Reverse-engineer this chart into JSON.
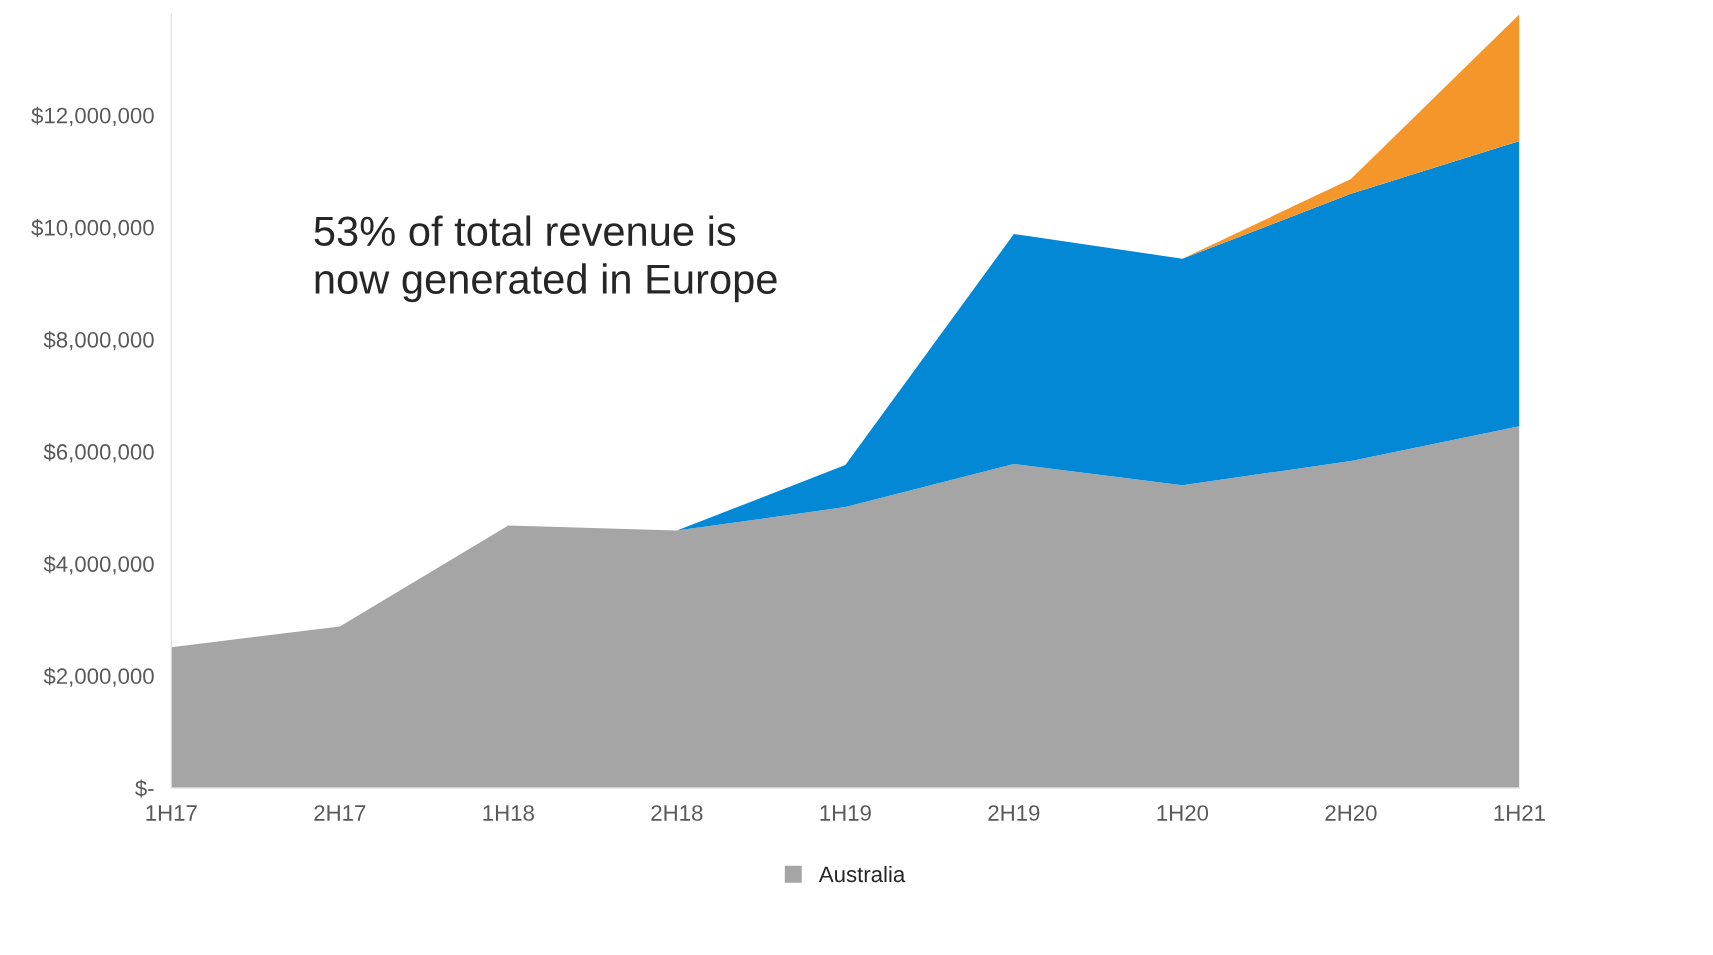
{
  "chart_data": {
    "type": "area",
    "stacked": true,
    "categories": [
      "1H17",
      "2H17",
      "1H18",
      "2H18",
      "1H19",
      "2H19",
      "1H20",
      "2H20",
      "1H21"
    ],
    "series": [
      {
        "name": "Australia",
        "color": "#a5a5a5",
        "values": [
          2510000,
          2880000,
          4680000,
          4590000,
          5010000,
          5780000,
          5400000,
          5830000,
          6450000
        ]
      },
      {
        "color": "#0288d5",
        "values": [
          0,
          0,
          0,
          0,
          750000,
          4100000,
          4040000,
          4770000,
          5090000
        ]
      },
      {
        "color": "#f4962a",
        "values": [
          0,
          0,
          0,
          0,
          0,
          0,
          0,
          260000,
          2260000
        ]
      }
    ],
    "ylim": [
      0,
      13800000
    ],
    "yticks": [
      {
        "value": 0,
        "label": "$-"
      },
      {
        "value": 2000000,
        "label": "$2,000,000"
      },
      {
        "value": 4000000,
        "label": "$4,000,000"
      },
      {
        "value": 6000000,
        "label": "$6,000,000"
      },
      {
        "value": 8000000,
        "label": "$8,000,000"
      },
      {
        "value": 10000000,
        "label": "$10,000,000"
      },
      {
        "value": 12000000,
        "label": "$12,000,000"
      }
    ],
    "annotations": [
      "53% of total revenue is\nnow generated in Europe"
    ],
    "grid": false,
    "legend": "bottom"
  }
}
